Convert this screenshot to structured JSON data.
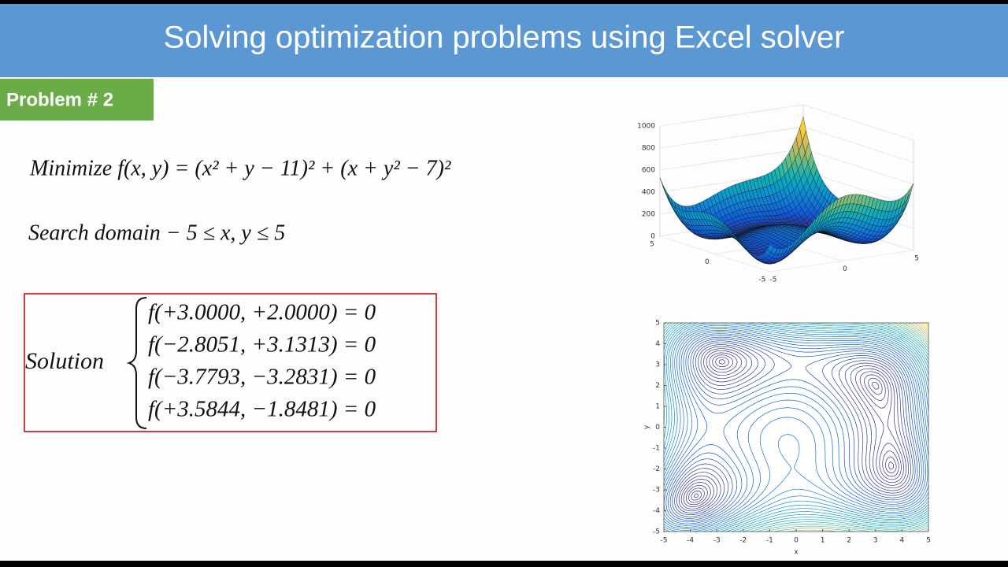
{
  "header": {
    "title": "Solving optimization problems using Excel solver"
  },
  "problem_label": "Problem # 2",
  "objective": "Minimize f(x, y) = (x² + y − 11)² + (x + y² − 7)²",
  "domain": "Search domain  − 5 ≤ x, y ≤ 5",
  "solution": {
    "label": "Solution",
    "lines": [
      "f(+3.0000, +2.0000) = 0",
      "f(−2.8051, +3.1313) = 0",
      "f(−3.7793, −3.2831) = 0",
      "f(+3.5844, −1.8481) = 0"
    ]
  },
  "plots": [
    {
      "type": "surface",
      "xlim": [
        -5,
        5
      ],
      "ylim": [
        -5,
        5
      ],
      "zlim": [
        0,
        1000
      ],
      "xticks": [
        -5,
        0,
        5
      ],
      "yticks": [
        -5,
        0,
        5
      ],
      "zticks": [
        0,
        200,
        400,
        600,
        800,
        1000
      ]
    },
    {
      "type": "contour",
      "xlim": [
        -5,
        5
      ],
      "ylim": [
        -5,
        5
      ],
      "xticks": [
        -5,
        -4,
        -3,
        -2,
        -1,
        0,
        1,
        2,
        3,
        4,
        5
      ],
      "yticks": [
        -5,
        -4,
        -3,
        -2,
        -1,
        0,
        1,
        2,
        3,
        4,
        5
      ],
      "xlabel": "x",
      "ylabel": "y"
    }
  ]
}
